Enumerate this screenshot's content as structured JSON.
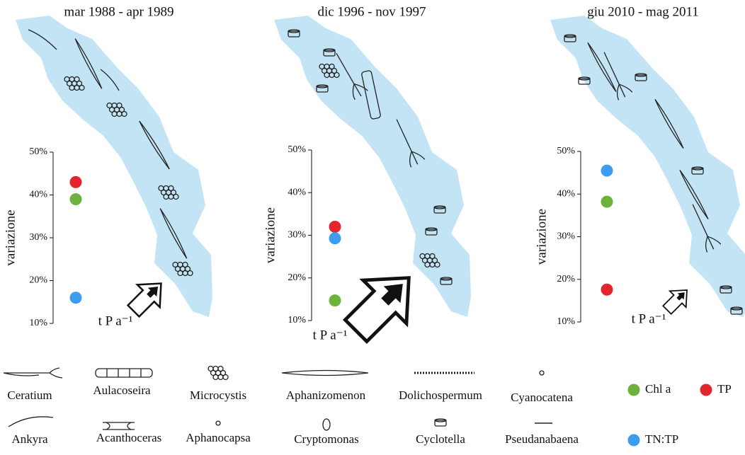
{
  "chart_data": [
    {
      "type": "scatter",
      "title": "mar 1988 - apr 1989",
      "y_label": "variazione",
      "annotation": "t P a⁻¹",
      "ylim": [
        10,
        50
      ],
      "yticks": [
        {
          "value": 10,
          "label": "10%"
        },
        {
          "value": 20,
          "label": "20%"
        },
        {
          "value": 30,
          "label": "30%"
        },
        {
          "value": 40,
          "label": "40%"
        },
        {
          "value": 50,
          "label": "50%"
        }
      ],
      "series": [
        {
          "name": "Chl a",
          "color": "#6cb33e",
          "values": [
            39
          ]
        },
        {
          "name": "TP",
          "color": "#e3262b",
          "values": [
            43
          ]
        },
        {
          "name": "TN:TP",
          "color": "#3d9bf0",
          "values": [
            16
          ]
        }
      ]
    },
    {
      "type": "scatter",
      "title": "dic 1996 - nov 1997",
      "y_label": "variazione",
      "annotation": "t P a⁻¹",
      "ylim": [
        10,
        50
      ],
      "yticks": [
        {
          "value": 10,
          "label": "10%"
        },
        {
          "value": 20,
          "label": "20%"
        },
        {
          "value": 30,
          "label": "30%"
        },
        {
          "value": 40,
          "label": "40%"
        },
        {
          "value": 50,
          "label": "50%"
        }
      ],
      "series": [
        {
          "name": "Chl a",
          "color": "#6cb33e",
          "values": [
            14.7
          ]
        },
        {
          "name": "TP",
          "color": "#e3262b",
          "values": [
            32
          ]
        },
        {
          "name": "TN:TP",
          "color": "#3d9bf0",
          "values": [
            29.3
          ]
        }
      ]
    },
    {
      "type": "scatter",
      "title": "giu 2010 - mag 2011",
      "y_label": "variazione",
      "annotation": "t P a⁻¹",
      "ylim": [
        10,
        50
      ],
      "yticks": [
        {
          "value": 10,
          "label": "10%"
        },
        {
          "value": 20,
          "label": "20%"
        },
        {
          "value": 30,
          "label": "30%"
        },
        {
          "value": 40,
          "label": "40%"
        },
        {
          "value": 50,
          "label": "50%"
        }
      ],
      "series": [
        {
          "name": "Chl a",
          "color": "#6cb33e",
          "values": [
            38.2
          ]
        },
        {
          "name": "TP",
          "color": "#e3262b",
          "values": [
            17.6
          ]
        },
        {
          "name": "TN:TP",
          "color": "#3d9bf0",
          "values": [
            45.5
          ]
        }
      ]
    }
  ],
  "taxa": [
    "Ceratium",
    "Aulacoseira",
    "Microcystis",
    "Aphanizomenon",
    "Dolichospermum",
    "Cyanocatena",
    "Ankyra",
    "Acanthoceras",
    "Aphanocapsa",
    "Cryptomonas",
    "Cyclotella",
    "Pseudanabaena"
  ]
}
